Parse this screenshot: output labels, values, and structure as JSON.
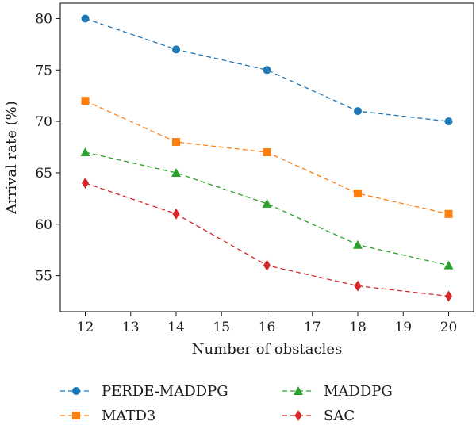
{
  "chart_data": {
    "type": "line",
    "title": "",
    "xlabel": "Number of obstacles",
    "ylabel": "Arrival rate (%)",
    "xlim": [
      11.45,
      20.55
    ],
    "ylim": [
      51.5,
      81.5
    ],
    "xticks": [
      12,
      13,
      14,
      15,
      16,
      17,
      18,
      19,
      20
    ],
    "yticks": [
      55,
      60,
      65,
      70,
      75,
      80
    ],
    "grid": false,
    "legend_position": "bottom",
    "x": [
      12,
      14,
      16,
      18,
      20
    ],
    "series": [
      {
        "name": "PERDE-MADDPG",
        "values": [
          80,
          77,
          75,
          71,
          70
        ],
        "color": "#1f77b4",
        "marker": "circle",
        "line_style": "dashed"
      },
      {
        "name": "MATD3",
        "values": [
          72,
          68,
          67,
          63,
          61
        ],
        "color": "#ff7f0e",
        "marker": "square",
        "line_style": "dashed"
      },
      {
        "name": "MADDPG",
        "values": [
          67,
          65,
          62,
          58,
          56
        ],
        "color": "#2ca02c",
        "marker": "triangle",
        "line_style": "dashed"
      },
      {
        "name": "SAC",
        "values": [
          64,
          61,
          56,
          54,
          53
        ],
        "color": "#d62728",
        "marker": "diamond",
        "line_style": "dashed"
      }
    ]
  }
}
